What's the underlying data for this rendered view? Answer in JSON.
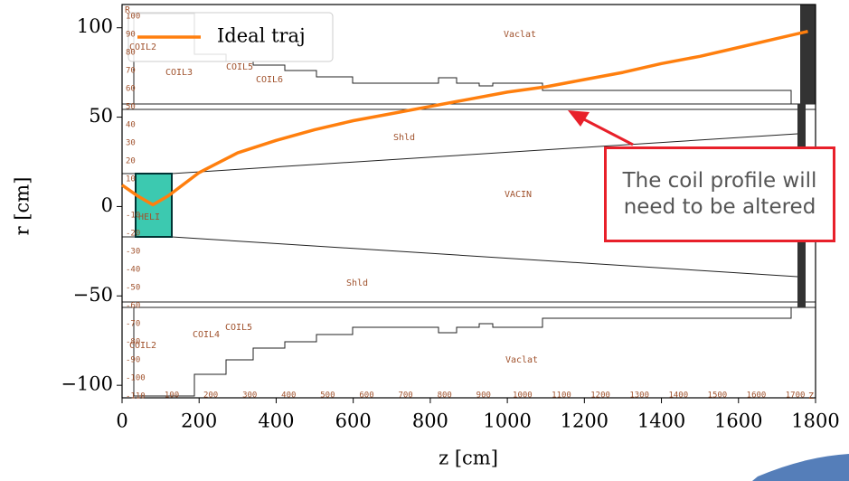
{
  "chart_data": {
    "type": "line",
    "xlabel": "z [cm]",
    "ylabel": "r [cm]",
    "x": [
      0,
      40,
      80,
      120,
      200,
      300,
      400,
      500,
      600,
      700,
      800,
      900,
      1000,
      1100,
      1200,
      1300,
      1400,
      1500,
      1600,
      1700,
      1780
    ],
    "series": [
      {
        "name": "Ideal traj",
        "color": "#ff7f0e",
        "values": [
          12,
          6,
          1,
          6,
          19,
          30,
          37,
          43,
          48,
          52,
          56,
          60,
          64,
          67,
          71,
          75,
          80,
          84,
          89,
          94,
          98
        ]
      }
    ],
    "xlim": [
      0,
      1800
    ],
    "ylim": [
      -107,
      113
    ],
    "xticks": [
      0,
      200,
      400,
      600,
      800,
      1000,
      1200,
      1400,
      1600,
      1800
    ],
    "yticks": [
      {
        "value": -100,
        "label": "−100"
      },
      {
        "value": -50,
        "label": "−50"
      },
      0,
      50,
      100
    ],
    "legend": "upper left",
    "annotation": "The coil profile will need to be altered",
    "region_labels": [
      "Vaclat",
      "COIL3",
      "COIL5",
      "COIL6",
      "COIL2",
      "Shld",
      "VACIN",
      "HELI",
      "Shld",
      "COIL4",
      "COIL5",
      "COIL2",
      "Vaclat",
      "R",
      "Z"
    ],
    "inner_r_labels": [
      100,
      90,
      80,
      70,
      60,
      50,
      40,
      30,
      20,
      10,
      -10,
      -20,
      -30,
      -40,
      -50,
      -60,
      -70,
      -80,
      -90,
      -100,
      -110
    ],
    "inner_z_labels": [
      100,
      200,
      300,
      400,
      500,
      600,
      700,
      800,
      900,
      1000,
      1100,
      1200,
      1300,
      1400,
      1500,
      1600,
      1700
    ]
  }
}
